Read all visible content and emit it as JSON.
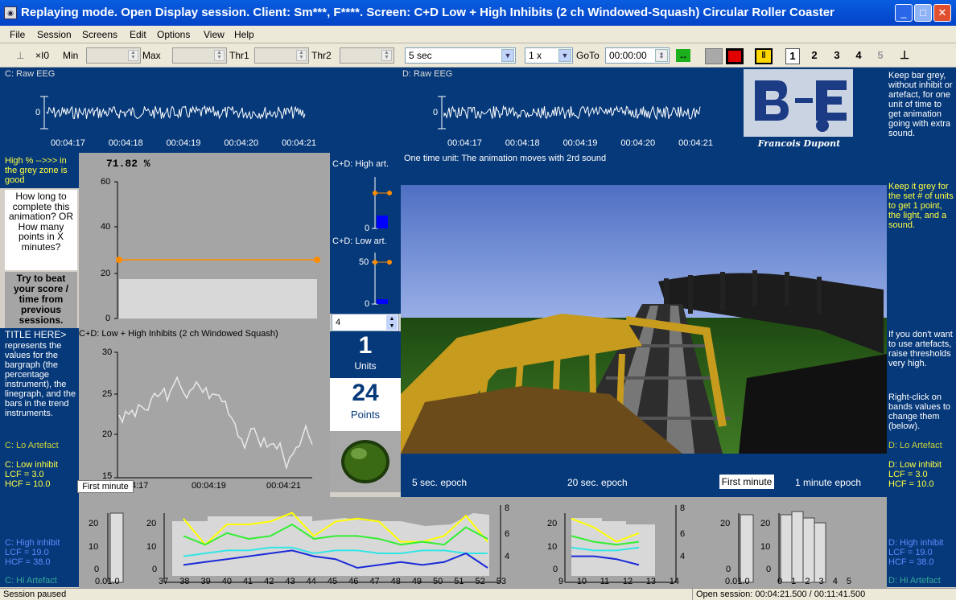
{
  "window": {
    "title": "Replaying mode. Open Display session. Client: Sm***, F****. Screen: C+D Low + High Inhibits (2 ch Windowed-Squash) Circular Roller Coaster"
  },
  "menu": [
    "File",
    "Session",
    "Screens",
    "Edit",
    "Options",
    "View",
    "Help"
  ],
  "toolbar": {
    "scale": "×I0",
    "min_label": "Min",
    "max_label": "Max",
    "thr1_label": "Thr1",
    "thr2_label": "Thr2",
    "epoch": "5 sec",
    "speed": "1 x",
    "goto_label": "GoTo",
    "goto_time": "00:00:00",
    "tabs": [
      "1",
      "2",
      "3",
      "4",
      "5"
    ]
  },
  "eeg": {
    "c_title": "C: Raw EEG",
    "d_title": "D: Raw EEG",
    "zero": "0",
    "times": [
      "00:04:17",
      "00:04:18",
      "00:04:19",
      "00:04:20",
      "00:04:21"
    ],
    "d_note": "One time unit: The animation moves with 2rd sound"
  },
  "logo": {
    "signature": "Francois Dupont"
  },
  "left": {
    "high_note": "High % -->>> in the grey zone is good",
    "question": "How long to complete this animation? OR How many points in X minutes?",
    "beat": "Try to beat your score / time from previous sessions.",
    "title_here": "TITLE HERE>",
    "title_desc": "represents the values for the bargraph (the percentage instrument), the linegraph, and the bars in the trend instruments.",
    "lo_artefact": "C: Lo Artefact",
    "low_inhibit": [
      "C: Low inhibit",
      "LCF = 3.0",
      "HCF = 10.0"
    ],
    "high_inhibit": [
      "C: High inhibit",
      "LCF = 19.0",
      "HCF = 38.0"
    ],
    "hi_artefact": "C: Hi Artefact"
  },
  "right": {
    "keep_bar": "Keep bar grey, without inhibit or artefact, for one unit of time to get animation going with extra sound.",
    "keep_grey": "Keep it grey for the set # of units to get 1 point, the light, and a sound.",
    "no_artefacts": "If you don't want to use artefacts, raise thresholds very high.",
    "right_click": "Right-click on bands values to change them (below).",
    "lo_artefact": "D: Lo Artefact",
    "low_inhibit": [
      "D: Low inhibit",
      "LCF = 3.0",
      "HCF = 10.0"
    ],
    "high_inhibit": [
      "D: High inhibit",
      "LCF = 19.0",
      "HCF = 38.0"
    ],
    "hi_artefact": "D: Hi Artefact"
  },
  "percent": {
    "value": "71.82 %",
    "ticks": [
      "60",
      "40",
      "20",
      "0"
    ]
  },
  "artifacts": {
    "high_label": "C+D: High art.",
    "low_label": "C+D: Low art.",
    "zero": "0",
    "fifty": "50",
    "units_setting": "4"
  },
  "counters": {
    "units": "1",
    "units_label": "Units",
    "points": "24",
    "points_label": "Points"
  },
  "linegraph": {
    "title": "C+D: Low + High Inhibits (2 ch Windowed Squash)",
    "ticks": [
      "30",
      "25",
      "20",
      "15"
    ],
    "times": [
      "4:17",
      "00:04:19",
      "00:04:21"
    ],
    "first_minute": "First minute"
  },
  "epochs": {
    "five": "5 sec. epoch",
    "twenty": "20 sec. epoch",
    "first_minute": "First minute",
    "one_min": "1 minute epoch"
  },
  "trend": {
    "left_ticks": [
      "20",
      "10",
      "0"
    ],
    "right_ticks": [
      "8",
      "6",
      "4"
    ],
    "x1": [
      "0.0",
      "1.0"
    ],
    "x2": [
      "37",
      "38",
      "39",
      "40",
      "41",
      "42",
      "43",
      "44",
      "45",
      "46",
      "47",
      "48",
      "49",
      "50",
      "51",
      "52",
      "53"
    ],
    "x3": [
      "9",
      "10",
      "11",
      "12",
      "13",
      "14"
    ],
    "x4": [
      "0.0",
      "1.0"
    ],
    "x5": [
      "0",
      "1",
      "2",
      "3",
      "4",
      "5"
    ]
  },
  "status": {
    "left": "Session paused",
    "right": "Open session: 00:04:21.500 / 00:11:41.500"
  },
  "colors": {
    "panel_blue": "#06397a",
    "yellow": "#ffff40",
    "orange": "#ff8c00",
    "line_yellow": "#ffff00",
    "line_green": "#33ee33",
    "line_cyan": "#33e5e5",
    "line_blue": "#1a2ad8"
  }
}
